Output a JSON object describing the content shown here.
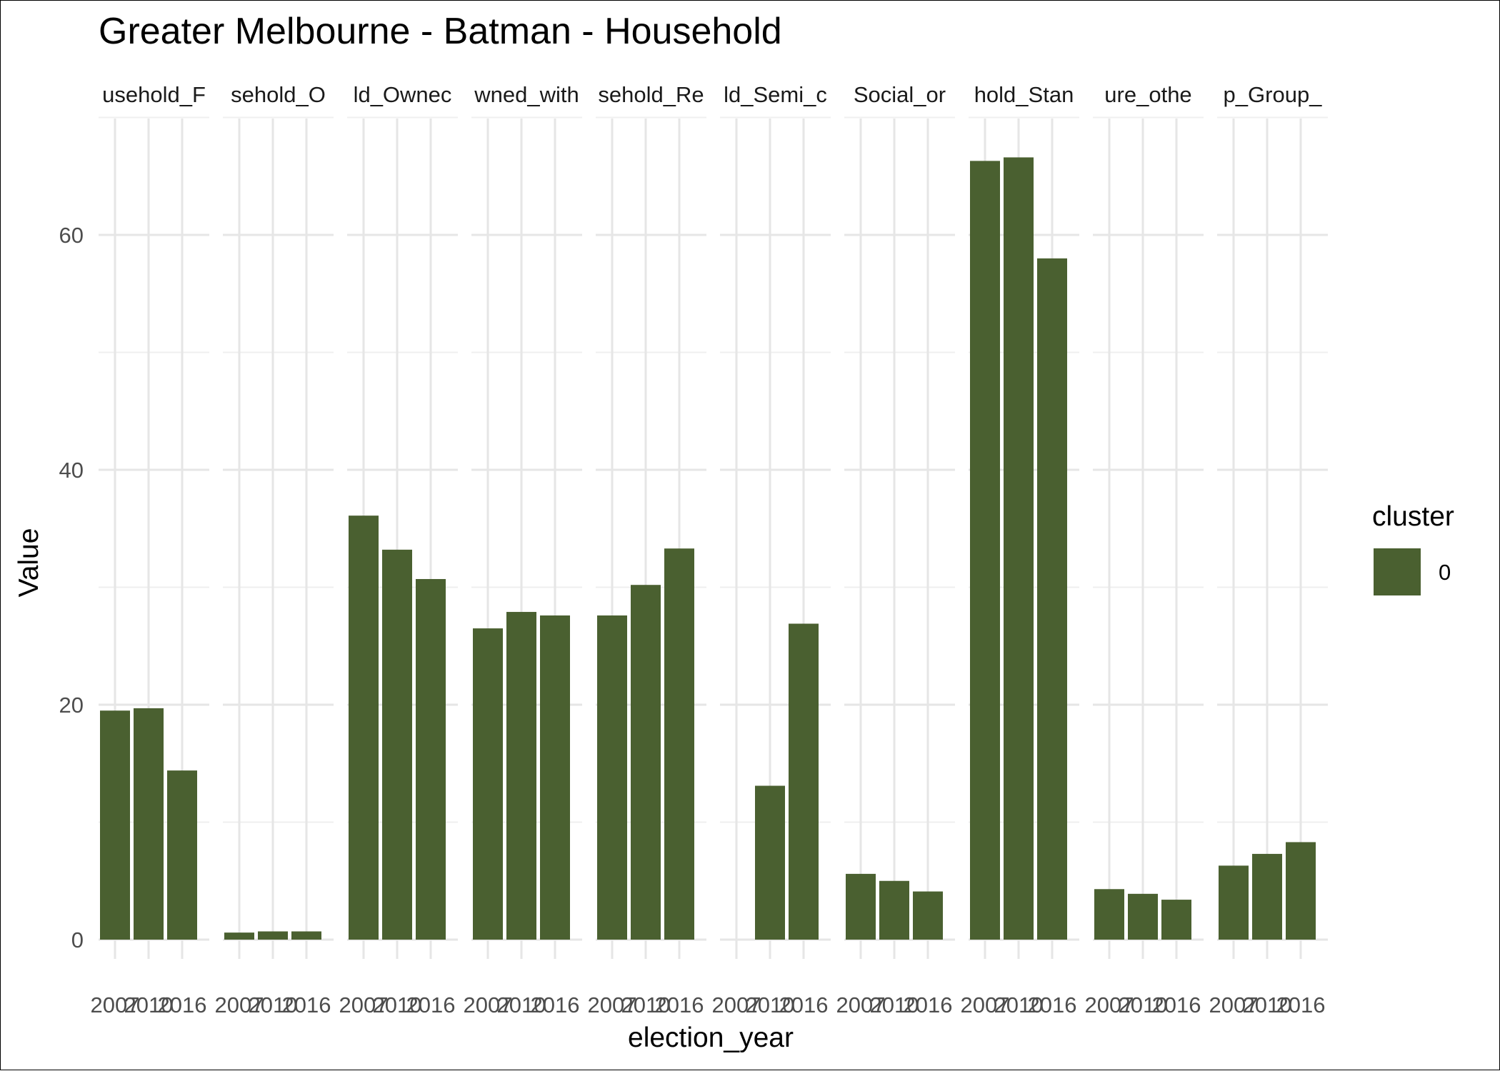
{
  "chart_data": {
    "type": "bar",
    "title": "Greater Melbourne - Batman - Household",
    "xlabel": "election_year",
    "ylabel": "Value",
    "ylim": [
      0,
      70
    ],
    "y_ticks": [
      0,
      20,
      40,
      60
    ],
    "grid": true,
    "legend": {
      "title": "cluster",
      "placement": "right",
      "items": [
        {
          "label": "0",
          "color": "#4a6030"
        }
      ]
    },
    "categories": [
      "2007",
      "2010",
      "2016"
    ],
    "facets": [
      {
        "label": "usehold_F",
        "values": [
          19.5,
          19.7,
          14.4
        ]
      },
      {
        "label": "sehold_O",
        "values": [
          0.6,
          0.7,
          0.7
        ]
      },
      {
        "label": "ld_Ownec",
        "values": [
          36.1,
          33.2,
          30.7
        ]
      },
      {
        "label": "wned_with",
        "values": [
          26.5,
          27.9,
          27.6
        ]
      },
      {
        "label": "sehold_Re",
        "values": [
          27.6,
          30.2,
          33.3
        ]
      },
      {
        "label": "ld_Semi_c",
        "values": [
          null,
          13.1,
          26.9
        ]
      },
      {
        "label": "Social_or",
        "values": [
          5.6,
          5.0,
          4.1
        ]
      },
      {
        "label": "hold_Stan",
        "values": [
          66.3,
          66.6,
          58.0
        ]
      },
      {
        "label": "ure_othe",
        "values": [
          4.3,
          3.9,
          3.4
        ]
      },
      {
        "label": "p_Group_",
        "values": [
          6.3,
          7.3,
          8.3
        ]
      }
    ],
    "bar_color": "#4a6030"
  }
}
